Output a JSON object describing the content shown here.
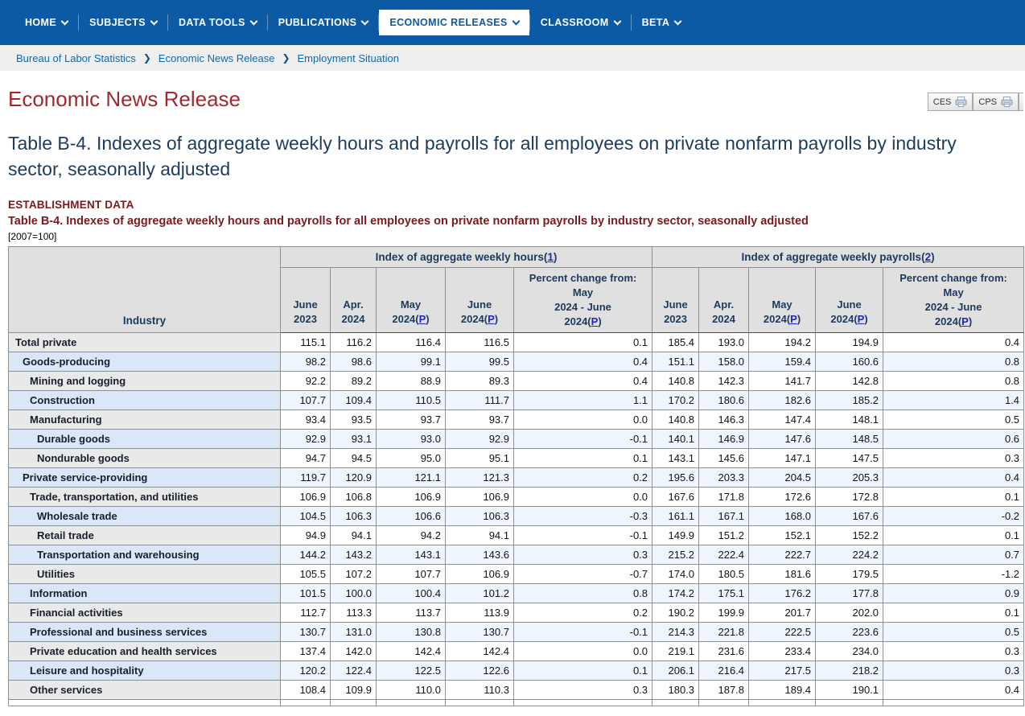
{
  "nav": {
    "items": [
      {
        "label": "HOME",
        "active": false
      },
      {
        "label": "SUBJECTS",
        "active": false
      },
      {
        "label": "DATA TOOLS",
        "active": false
      },
      {
        "label": "PUBLICATIONS",
        "active": false
      },
      {
        "label": "ECONOMIC RELEASES",
        "active": true
      },
      {
        "label": "CLASSROOM",
        "active": false
      },
      {
        "label": "BETA",
        "active": false
      }
    ]
  },
  "breadcrumb": {
    "items": [
      "Bureau of Labor Statistics",
      "Economic News Release",
      "Employment Situation"
    ],
    "separator": "❯"
  },
  "page": {
    "title": "Economic News Release",
    "buttons": [
      {
        "label": "CES",
        "icon": "print-icon"
      },
      {
        "label": "CPS",
        "icon": "print-icon"
      }
    ]
  },
  "release": {
    "heading": "Table B-4. Indexes of aggregate weekly hours and payrolls for all employees on private nonfarm payrolls by industry sector, seasonally adjusted",
    "section_label": "ESTABLISHMENT DATA",
    "table_title": "Table B-4. Indexes of aggregate weekly hours and payrolls for all employees on private nonfarm payrolls by industry sector, seasonally adjusted",
    "base_note": "[2007=100]"
  },
  "table": {
    "header": {
      "industry": "Industry",
      "hours_group": "Index of aggregate weekly hours",
      "hours_footnote": "1",
      "payrolls_group": "Index of aggregate weekly payrolls",
      "payrolls_footnote": "2",
      "prelim": "P",
      "date_cols": [
        [
          "June",
          "2023"
        ],
        [
          "Apr.",
          "2024"
        ],
        [
          "May",
          "2024"
        ],
        [
          "June",
          "2024"
        ]
      ],
      "pct_lines": [
        "Percent change from:",
        "May",
        "2024 - June",
        "2024"
      ]
    },
    "rows": [
      {
        "industry": "Total private",
        "indent": 0,
        "hours": [
          "115.1",
          "116.2",
          "116.4",
          "116.5",
          "0.1"
        ],
        "payrolls": [
          "185.4",
          "193.0",
          "194.2",
          "194.9",
          "0.4"
        ]
      },
      {
        "industry": "Goods-producing",
        "indent": 1,
        "hours": [
          "98.2",
          "98.6",
          "99.1",
          "99.5",
          "0.4"
        ],
        "payrolls": [
          "151.1",
          "158.0",
          "159.4",
          "160.6",
          "0.8"
        ]
      },
      {
        "industry": "Mining and logging",
        "indent": 2,
        "hours": [
          "92.2",
          "89.2",
          "88.9",
          "89.3",
          "0.4"
        ],
        "payrolls": [
          "140.8",
          "142.3",
          "141.7",
          "142.8",
          "0.8"
        ]
      },
      {
        "industry": "Construction",
        "indent": 2,
        "hours": [
          "107.7",
          "109.4",
          "110.5",
          "111.7",
          "1.1"
        ],
        "payrolls": [
          "170.2",
          "180.6",
          "182.6",
          "185.2",
          "1.4"
        ]
      },
      {
        "industry": "Manufacturing",
        "indent": 2,
        "hours": [
          "93.4",
          "93.5",
          "93.7",
          "93.7",
          "0.0"
        ],
        "payrolls": [
          "140.8",
          "146.3",
          "147.4",
          "148.1",
          "0.5"
        ]
      },
      {
        "industry": "Durable goods",
        "indent": 3,
        "hours": [
          "92.9",
          "93.1",
          "93.0",
          "92.9",
          "-0.1"
        ],
        "payrolls": [
          "140.1",
          "146.9",
          "147.6",
          "148.5",
          "0.6"
        ]
      },
      {
        "industry": "Nondurable goods",
        "indent": 3,
        "hours": [
          "94.7",
          "94.5",
          "95.0",
          "95.1",
          "0.1"
        ],
        "payrolls": [
          "143.1",
          "145.6",
          "147.1",
          "147.5",
          "0.3"
        ]
      },
      {
        "industry": "Private service-providing",
        "indent": 1,
        "hours": [
          "119.7",
          "120.9",
          "121.1",
          "121.3",
          "0.2"
        ],
        "payrolls": [
          "195.6",
          "203.3",
          "204.5",
          "205.3",
          "0.4"
        ]
      },
      {
        "industry": "Trade, transportation, and utilities",
        "indent": 2,
        "hours": [
          "106.9",
          "106.8",
          "106.9",
          "106.9",
          "0.0"
        ],
        "payrolls": [
          "167.6",
          "171.8",
          "172.6",
          "172.8",
          "0.1"
        ]
      },
      {
        "industry": "Wholesale trade",
        "indent": 3,
        "hours": [
          "104.5",
          "106.3",
          "106.6",
          "106.3",
          "-0.3"
        ],
        "payrolls": [
          "161.1",
          "167.1",
          "168.0",
          "167.6",
          "-0.2"
        ]
      },
      {
        "industry": "Retail trade",
        "indent": 3,
        "hours": [
          "94.9",
          "94.1",
          "94.2",
          "94.1",
          "-0.1"
        ],
        "payrolls": [
          "149.9",
          "151.2",
          "152.1",
          "152.2",
          "0.1"
        ]
      },
      {
        "industry": "Transportation and warehousing",
        "indent": 3,
        "hours": [
          "144.2",
          "143.2",
          "143.1",
          "143.6",
          "0.3"
        ],
        "payrolls": [
          "215.2",
          "222.4",
          "222.7",
          "224.2",
          "0.7"
        ]
      },
      {
        "industry": "Utilities",
        "indent": 3,
        "hours": [
          "105.5",
          "107.2",
          "107.7",
          "106.9",
          "-0.7"
        ],
        "payrolls": [
          "174.0",
          "180.5",
          "181.6",
          "179.5",
          "-1.2"
        ]
      },
      {
        "industry": "Information",
        "indent": 2,
        "hours": [
          "101.5",
          "100.0",
          "100.4",
          "101.2",
          "0.8"
        ],
        "payrolls": [
          "174.2",
          "175.1",
          "176.2",
          "177.8",
          "0.9"
        ]
      },
      {
        "industry": "Financial activities",
        "indent": 2,
        "hours": [
          "112.7",
          "113.3",
          "113.7",
          "113.9",
          "0.2"
        ],
        "payrolls": [
          "190.2",
          "199.9",
          "201.7",
          "202.0",
          "0.1"
        ]
      },
      {
        "industry": "Professional and business services",
        "indent": 2,
        "hours": [
          "130.7",
          "131.0",
          "130.8",
          "130.7",
          "-0.1"
        ],
        "payrolls": [
          "214.3",
          "221.8",
          "222.5",
          "223.6",
          "0.5"
        ]
      },
      {
        "industry": "Private education and health services",
        "indent": 2,
        "hours": [
          "137.4",
          "142.0",
          "142.4",
          "142.4",
          "0.0"
        ],
        "payrolls": [
          "219.1",
          "231.6",
          "233.4",
          "234.0",
          "0.3"
        ]
      },
      {
        "industry": "Leisure and hospitality",
        "indent": 2,
        "hours": [
          "120.2",
          "122.4",
          "122.5",
          "122.6",
          "0.1"
        ],
        "payrolls": [
          "206.1",
          "216.4",
          "217.5",
          "218.2",
          "0.3"
        ]
      },
      {
        "industry": "Other services",
        "indent": 2,
        "hours": [
          "108.4",
          "109.9",
          "110.0",
          "110.3",
          "0.3"
        ],
        "payrolls": [
          "180.3",
          "187.8",
          "189.4",
          "190.1",
          "0.4"
        ]
      }
    ]
  },
  "colors": {
    "nav_blue": "#0c59a4",
    "title_maroon": "#a3282d",
    "section_maroon": "#7a1a1e",
    "heading_navy": "#1c3c5e",
    "link_blue": "#2323cd",
    "row_blue_label": "#d9e7f6",
    "row_blue_cell": "#eef5fc",
    "row_gray_label": "#e9e9e9",
    "header_gray": "#e0e0e0"
  },
  "icons": {
    "nav_chevron": "chevron-down-icon",
    "breadcrumb_separator": "chevron-right-icon",
    "button_icon": "print-icon"
  }
}
